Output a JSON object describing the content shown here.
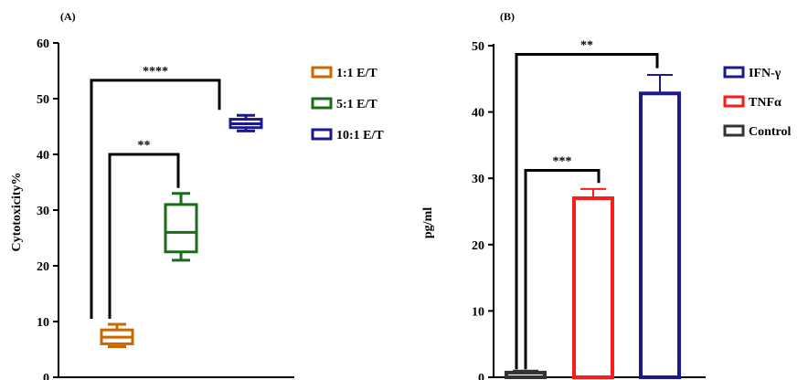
{
  "chart_data": [
    {
      "panel_label": "(A)",
      "type": "box",
      "title": "",
      "xlabel": "",
      "ylabel": "Cytotoxicity%",
      "ylim": [
        0,
        60
      ],
      "yticks": [
        0,
        10,
        20,
        30,
        40,
        50,
        60
      ],
      "series": [
        {
          "name": "1:1 E/T",
          "color": "#cc6600",
          "min": 5.5,
          "q1": 6.0,
          "median": 7.2,
          "q3": 8.5,
          "max": 9.5
        },
        {
          "name": "5:1 E/T",
          "color": "#1a6b1a",
          "min": 21.0,
          "q1": 22.5,
          "median": 26.0,
          "q3": 31.0,
          "max": 33.0
        },
        {
          "name": "10:1 E/T",
          "color": "#1a1a8c",
          "min": 44.2,
          "q1": 44.8,
          "median": 45.5,
          "q3": 46.3,
          "max": 47.0
        }
      ],
      "significance": [
        {
          "from": 0,
          "to": 2,
          "label": "****"
        },
        {
          "from": 0,
          "to": 1,
          "label": "**"
        }
      ],
      "legend_position": "right"
    },
    {
      "panel_label": "(B)",
      "type": "bar",
      "title": "",
      "xlabel": "",
      "ylabel": "pg/ml",
      "ylim": [
        0,
        50
      ],
      "yticks": [
        0,
        10,
        20,
        30,
        40,
        50
      ],
      "series": [
        {
          "name": "Control",
          "color": "#333333",
          "value": 0.7,
          "error": 0.3
        },
        {
          "name": "TNFα",
          "color": "#ff1a1a",
          "value": 27.0,
          "error": 1.4
        },
        {
          "name": "IFN-γ",
          "color": "#1a1a8c",
          "value": 42.8,
          "error": 2.8
        }
      ],
      "legend_order": [
        "IFN-γ",
        "TNFα",
        "Control"
      ],
      "significance": [
        {
          "from": 0,
          "to": 2,
          "label": "**"
        },
        {
          "from": 0,
          "to": 1,
          "label": "***"
        }
      ],
      "legend_position": "right"
    }
  ]
}
